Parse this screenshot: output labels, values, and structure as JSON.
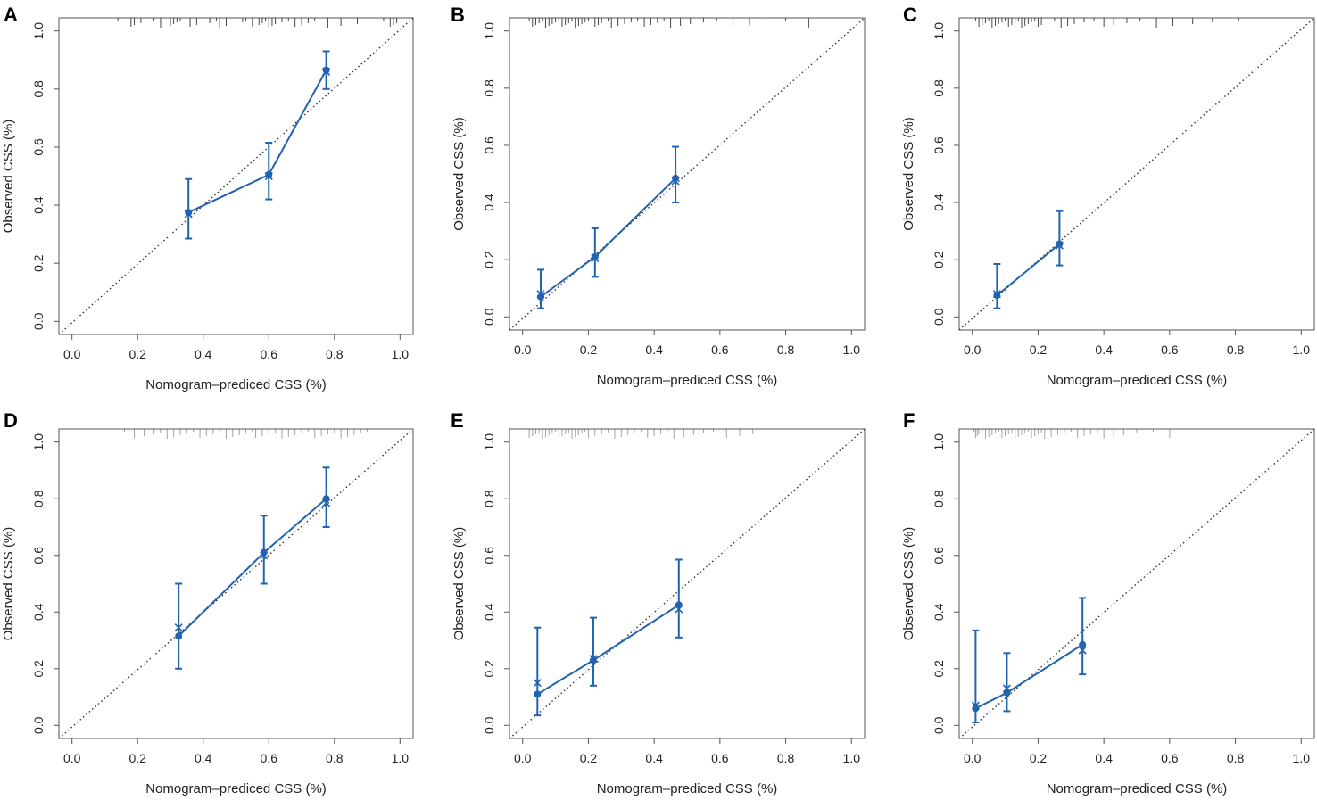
{
  "colors": {
    "series": "#2163AE",
    "reference": "#333333",
    "axis": "#555555",
    "rug": "#333333"
  },
  "chart_data": [
    {
      "type": "scatter",
      "panel": "A",
      "xlabel": "Nomogram–prediced CSS (%)",
      "ylabel": "Observed CSS (%)",
      "xlim": [
        0,
        1
      ],
      "ylim": [
        0,
        1
      ],
      "x_ticks": [
        "0.0",
        "0.2",
        "0.4",
        "0.6",
        "0.8",
        "1.0"
      ],
      "y_ticks": [
        "0.0",
        "0.2",
        "0.4",
        "0.6",
        "0.8",
        "1.0"
      ],
      "reference_line": "diagonal",
      "points": [
        {
          "x": 0.355,
          "observed": 0.375,
          "lower": 0.285,
          "upper": 0.49,
          "bias_corrected": 0.37
        },
        {
          "x": 0.6,
          "observed": 0.505,
          "lower": 0.42,
          "upper": 0.615,
          "bias_corrected": 0.5
        },
        {
          "x": 0.775,
          "observed": 0.865,
          "lower": 0.8,
          "upper": 0.93,
          "bias_corrected": 0.86
        }
      ],
      "rug": [
        0.14,
        0.18,
        0.19,
        0.21,
        0.25,
        0.27,
        0.3,
        0.31,
        0.32,
        0.33,
        0.36,
        0.38,
        0.42,
        0.44,
        0.45,
        0.47,
        0.5,
        0.52,
        0.53,
        0.55,
        0.57,
        0.58,
        0.59,
        0.6,
        0.61,
        0.62,
        0.64,
        0.66,
        0.68,
        0.7,
        0.72,
        0.74,
        0.78,
        0.82,
        0.87,
        0.93,
        0.95,
        0.97,
        0.98,
        0.99
      ]
    },
    {
      "type": "scatter",
      "panel": "B",
      "xlabel": "Nomogram–prediced CSS (%)",
      "ylabel": "Observed CSS (%)",
      "xlim": [
        0,
        1
      ],
      "ylim": [
        0,
        1
      ],
      "x_ticks": [
        "0.0",
        "0.2",
        "0.4",
        "0.6",
        "0.8",
        "1.0"
      ],
      "y_ticks": [
        "0.0",
        "0.2",
        "0.4",
        "0.6",
        "0.8",
        "1.0"
      ],
      "reference_line": "diagonal",
      "points": [
        {
          "x": 0.055,
          "observed": 0.07,
          "lower": 0.03,
          "upper": 0.165,
          "bias_corrected": 0.08
        },
        {
          "x": 0.22,
          "observed": 0.21,
          "lower": 0.14,
          "upper": 0.31,
          "bias_corrected": 0.205
        },
        {
          "x": 0.465,
          "observed": 0.485,
          "lower": 0.4,
          "upper": 0.595,
          "bias_corrected": 0.475
        }
      ],
      "rug": [
        0.02,
        0.03,
        0.04,
        0.05,
        0.06,
        0.07,
        0.08,
        0.09,
        0.1,
        0.11,
        0.12,
        0.13,
        0.14,
        0.15,
        0.16,
        0.17,
        0.18,
        0.19,
        0.2,
        0.22,
        0.23,
        0.24,
        0.26,
        0.27,
        0.29,
        0.31,
        0.33,
        0.35,
        0.37,
        0.39,
        0.41,
        0.43,
        0.45,
        0.48,
        0.51,
        0.55,
        0.59,
        0.64,
        0.69,
        0.74,
        0.8,
        0.87
      ]
    },
    {
      "type": "scatter",
      "panel": "C",
      "xlabel": "Nomogram–prediced CSS (%)",
      "ylabel": "Observed CSS (%)",
      "xlim": [
        0,
        1
      ],
      "ylim": [
        0,
        1
      ],
      "x_ticks": [
        "0.0",
        "0.2",
        "0.4",
        "0.6",
        "0.8",
        "1.0"
      ],
      "y_ticks": [
        "0.0",
        "0.2",
        "0.4",
        "0.6",
        "0.8",
        "1.0"
      ],
      "reference_line": "diagonal",
      "points": [
        {
          "x": 0.075,
          "observed": 0.075,
          "lower": 0.03,
          "upper": 0.185,
          "bias_corrected": 0.08
        },
        {
          "x": 0.265,
          "observed": 0.255,
          "lower": 0.18,
          "upper": 0.37,
          "bias_corrected": 0.25
        }
      ],
      "rug": [
        0.01,
        0.02,
        0.03,
        0.04,
        0.05,
        0.06,
        0.07,
        0.08,
        0.09,
        0.1,
        0.11,
        0.12,
        0.13,
        0.14,
        0.15,
        0.16,
        0.17,
        0.18,
        0.19,
        0.2,
        0.21,
        0.23,
        0.25,
        0.27,
        0.29,
        0.31,
        0.34,
        0.37,
        0.4,
        0.43,
        0.47,
        0.51,
        0.56,
        0.61,
        0.67,
        0.73,
        0.81
      ]
    },
    {
      "type": "scatter",
      "panel": "D",
      "xlabel": "Nomogram–prediced CSS (%)",
      "ylabel": "Observed CSS (%)",
      "xlim": [
        0,
        1
      ],
      "ylim": [
        0,
        1
      ],
      "x_ticks": [
        "0.0",
        "0.2",
        "0.4",
        "0.6",
        "0.8",
        "1.0"
      ],
      "y_ticks": [
        "0.0",
        "0.2",
        "0.4",
        "0.6",
        "0.8",
        "1.0"
      ],
      "reference_line": "diagonal",
      "points": [
        {
          "x": 0.325,
          "observed": 0.315,
          "lower": 0.2,
          "upper": 0.5,
          "bias_corrected": 0.345
        },
        {
          "x": 0.585,
          "observed": 0.61,
          "lower": 0.5,
          "upper": 0.74,
          "bias_corrected": 0.6
        },
        {
          "x": 0.775,
          "observed": 0.8,
          "lower": 0.7,
          "upper": 0.91,
          "bias_corrected": 0.785
        }
      ],
      "rug": [
        0.16,
        0.19,
        0.22,
        0.25,
        0.27,
        0.29,
        0.31,
        0.33,
        0.35,
        0.37,
        0.39,
        0.41,
        0.43,
        0.45,
        0.47,
        0.49,
        0.51,
        0.53,
        0.55,
        0.56,
        0.58,
        0.6,
        0.62,
        0.64,
        0.66,
        0.68,
        0.7,
        0.72,
        0.74,
        0.76,
        0.78,
        0.8,
        0.82,
        0.84,
        0.86,
        0.88,
        0.9
      ]
    },
    {
      "type": "scatter",
      "panel": "E",
      "xlabel": "Nomogram–prediced CSS (%)",
      "ylabel": "Observed CSS (%)",
      "xlim": [
        0,
        1
      ],
      "ylim": [
        0,
        1
      ],
      "x_ticks": [
        "0.0",
        "0.2",
        "0.4",
        "0.6",
        "0.8",
        "1.0"
      ],
      "y_ticks": [
        "0.0",
        "0.2",
        "0.4",
        "0.6",
        "0.8",
        "1.0"
      ],
      "reference_line": "diagonal",
      "points": [
        {
          "x": 0.045,
          "observed": 0.11,
          "lower": 0.035,
          "upper": 0.345,
          "bias_corrected": 0.15
        },
        {
          "x": 0.215,
          "observed": 0.23,
          "lower": 0.14,
          "upper": 0.38,
          "bias_corrected": 0.235
        },
        {
          "x": 0.475,
          "observed": 0.425,
          "lower": 0.31,
          "upper": 0.585,
          "bias_corrected": 0.41
        }
      ],
      "rug": [
        0.01,
        0.02,
        0.03,
        0.04,
        0.05,
        0.06,
        0.07,
        0.08,
        0.09,
        0.1,
        0.11,
        0.12,
        0.13,
        0.14,
        0.15,
        0.16,
        0.17,
        0.18,
        0.19,
        0.2,
        0.22,
        0.24,
        0.26,
        0.28,
        0.3,
        0.32,
        0.34,
        0.36,
        0.38,
        0.4,
        0.42,
        0.44,
        0.46,
        0.49,
        0.52,
        0.55,
        0.58,
        0.62,
        0.66,
        0.7
      ]
    },
    {
      "type": "scatter",
      "panel": "F",
      "xlabel": "Nomogram–prediced CSS (%)",
      "ylabel": "Observed CSS (%)",
      "xlim": [
        0,
        1
      ],
      "ylim": [
        0,
        1
      ],
      "x_ticks": [
        "0.0",
        "0.2",
        "0.4",
        "0.6",
        "0.8",
        "1.0"
      ],
      "y_ticks": [
        "0.0",
        "0.2",
        "0.4",
        "0.6",
        "0.8",
        "1.0"
      ],
      "reference_line": "diagonal",
      "points": [
        {
          "x": 0.01,
          "observed": 0.06,
          "lower": 0.01,
          "upper": 0.335,
          "bias_corrected": 0.07
        },
        {
          "x": 0.105,
          "observed": 0.115,
          "lower": 0.05,
          "upper": 0.255,
          "bias_corrected": 0.13
        },
        {
          "x": 0.335,
          "observed": 0.285,
          "lower": 0.18,
          "upper": 0.45,
          "bias_corrected": 0.265
        }
      ],
      "rug": [
        0.005,
        0.01,
        0.015,
        0.02,
        0.03,
        0.04,
        0.05,
        0.06,
        0.07,
        0.08,
        0.09,
        0.1,
        0.11,
        0.12,
        0.13,
        0.14,
        0.15,
        0.16,
        0.17,
        0.18,
        0.19,
        0.2,
        0.21,
        0.22,
        0.24,
        0.26,
        0.28,
        0.3,
        0.32,
        0.34,
        0.36,
        0.38,
        0.4,
        0.43,
        0.46,
        0.5,
        0.55,
        0.6
      ]
    }
  ]
}
